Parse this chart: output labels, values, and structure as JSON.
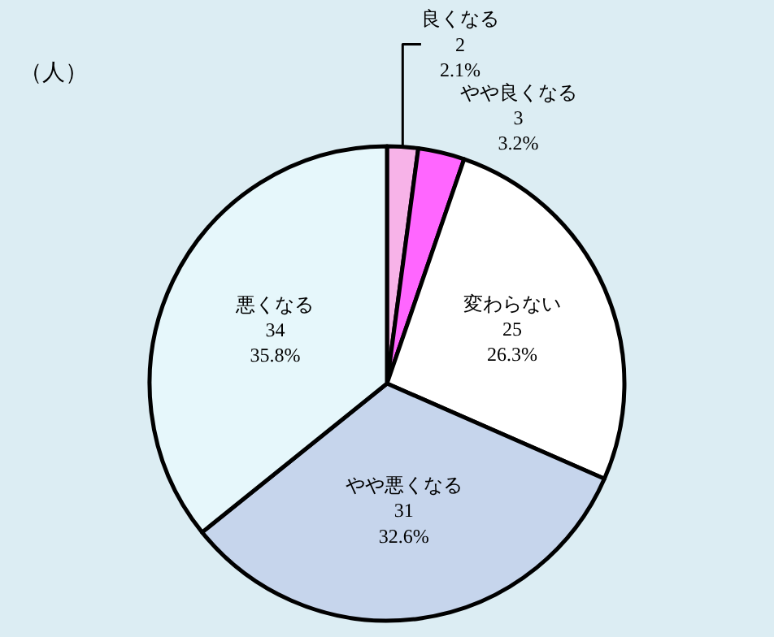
{
  "chart_data": {
    "type": "pie",
    "title": "（人）",
    "categories": [
      "良くなる",
      "やや良くなる",
      "変わらない",
      "やや悪くなる",
      "悪くなる"
    ],
    "values": [
      2,
      3,
      25,
      31,
      34
    ],
    "value_labels": [
      "2\n2.1%",
      "3\n3.2%",
      "25\n26.3%",
      "31\n32.6%",
      "34\n35.8%"
    ],
    "colors": [
      "#f7b3e8",
      "#ff66ff",
      "#ffffff",
      "#c6d5ec",
      "#e6f7fb"
    ],
    "legend": false
  }
}
